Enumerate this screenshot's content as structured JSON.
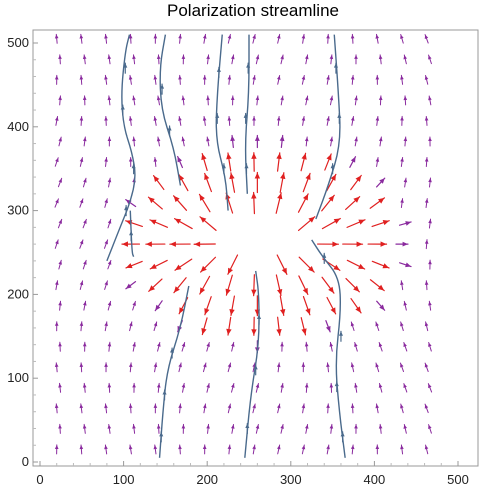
{
  "chart_data": {
    "type": "vector_field",
    "title": "Polarization streamline",
    "xlabel": "",
    "ylabel": "",
    "xlim": [
      0,
      520
    ],
    "ylim": [
      -8,
      522
    ],
    "x_ticks": [
      0,
      100,
      200,
      300,
      400,
      500
    ],
    "y_ticks": [
      0,
      100,
      200,
      300,
      400,
      500
    ],
    "grid": false,
    "legend": "none",
    "colors": {
      "weak_arrow": "#8a2a9e",
      "strong_arrow": "#e02020",
      "streamline": "#4a6a8c",
      "frame": "#999999"
    },
    "field": {
      "x_start": 20,
      "x_step": 29.5,
      "x_count": 16,
      "y_start": 15,
      "y_step": 24.5,
      "y_count": 21,
      "red_region": {
        "cx": 265,
        "cy": 262,
        "rx": 180,
        "ry": 125
      },
      "vortex_centers": [
        [
          260,
          262
        ]
      ]
    },
    "streamlines": [
      {
        "points": [
          [
            80,
            240
          ],
          [
            95,
            278
          ],
          [
            108,
            310
          ],
          [
            115,
            340
          ],
          [
            110,
            370
          ],
          [
            100,
            400
          ],
          [
            97,
            440
          ],
          [
            102,
            490
          ],
          [
            107,
            510
          ]
        ],
        "arrow_at": [
          [
            102,
            470
          ],
          [
            99,
            420
          ],
          [
            112,
            350
          ],
          [
            103,
            300
          ]
        ]
      },
      {
        "points": [
          [
            168,
            330
          ],
          [
            160,
            375
          ],
          [
            145,
            420
          ],
          [
            143,
            470
          ],
          [
            150,
            510
          ]
        ],
        "arrow_at": [
          [
            146,
            445
          ],
          [
            155,
            395
          ]
        ]
      },
      {
        "points": [
          [
            225,
            300
          ],
          [
            222,
            340
          ],
          [
            210,
            385
          ],
          [
            212,
            440
          ],
          [
            218,
            510
          ]
        ],
        "arrow_at": [
          [
            214,
            465
          ],
          [
            212,
            410
          ],
          [
            220,
            350
          ]
        ]
      },
      {
        "points": [
          [
            248,
            320
          ],
          [
            245,
            380
          ],
          [
            250,
            440
          ],
          [
            250,
            510
          ]
        ],
        "arrow_at": [
          [
            249,
            470
          ],
          [
            246,
            410
          ],
          [
            247,
            350
          ]
        ]
      },
      {
        "points": [
          [
            330,
            290
          ],
          [
            345,
            330
          ],
          [
            360,
            380
          ],
          [
            357,
            440
          ],
          [
            352,
            510
          ]
        ],
        "arrow_at": [
          [
            354,
            470
          ],
          [
            358,
            410
          ],
          [
            350,
            350
          ]
        ]
      },
      {
        "points": [
          [
            325,
            265
          ],
          [
            338,
            245
          ],
          [
            358,
            220
          ],
          [
            360,
            180
          ],
          [
            353,
            120
          ],
          [
            358,
            60
          ],
          [
            365,
            5
          ]
        ],
        "arrow_at": [
          [
            360,
            150
          ],
          [
            355,
            90
          ],
          [
            362,
            30
          ],
          [
            340,
            243
          ]
        ]
      },
      {
        "points": [
          [
            258,
            228
          ],
          [
            262,
            200
          ],
          [
            262,
            140
          ],
          [
            252,
            80
          ],
          [
            245,
            5
          ]
        ],
        "arrow_at": [
          [
            262,
            170
          ],
          [
            258,
            110
          ],
          [
            248,
            40
          ]
        ]
      },
      {
        "points": [
          [
            178,
            210
          ],
          [
            168,
            160
          ],
          [
            152,
            110
          ],
          [
            147,
            60
          ],
          [
            143,
            5
          ]
        ],
        "arrow_at": [
          [
            158,
            130
          ],
          [
            149,
            80
          ],
          [
            145,
            30
          ]
        ]
      },
      {
        "points": [
          [
            108,
            300
          ],
          [
            110,
            250
          ],
          [
            112,
            245
          ]
        ],
        "arrow_at": [
          [
            109,
            270
          ]
        ]
      }
    ]
  }
}
